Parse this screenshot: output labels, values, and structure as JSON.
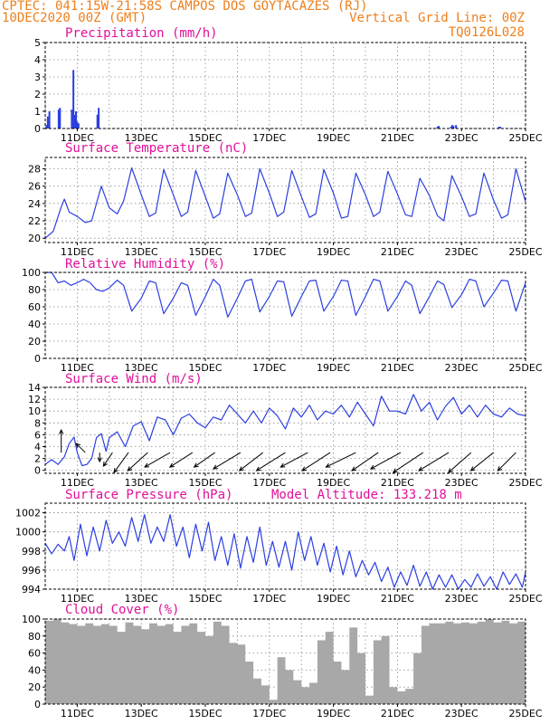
{
  "header": {
    "line1_left": "CPTEC:   041:15W-21:58S  CAMPOS DOS GOYTACAZES (RJ)",
    "line2_left": "10DEC2020 00Z (GMT)",
    "line2_right": "Vertical Grid Line: 00Z",
    "line3_right": "TQ0126L028"
  },
  "colors": {
    "header": "#ee7f1c",
    "panel_title": "#e0109a",
    "series": "#2b3fe0",
    "cloud": "#a8a8a8",
    "wind_arrow": "#000000",
    "grid": "#8a8a8a"
  },
  "x_axis": {
    "tick_labels": [
      "11DEC",
      "13DEC",
      "15DEC",
      "17DEC",
      "19DEC",
      "21DEC",
      "23DEC",
      "25DEC"
    ],
    "tick_days": [
      11,
      13,
      15,
      17,
      19,
      21,
      23,
      25
    ],
    "start_day": 10.0,
    "end_day": 25.0
  },
  "chart_data": [
    {
      "id": "precip",
      "type": "bar",
      "title": "Precipitation (mm/h)",
      "ylim": [
        0,
        5
      ],
      "yticks": [
        0,
        1,
        2,
        3,
        4,
        5
      ],
      "grid": true,
      "x": [
        10.04,
        10.08,
        10.13,
        10.42,
        10.46,
        10.83,
        10.88,
        10.92,
        10.96,
        11.0,
        11.04,
        11.63,
        11.67,
        22.25,
        22.29,
        22.67,
        22.71,
        22.75,
        22.83,
        24.17,
        24.21
      ],
      "values": [
        0.2,
        0.7,
        1.0,
        1.1,
        1.2,
        1.1,
        3.4,
        0.8,
        1.0,
        0.4,
        0.3,
        0.8,
        1.2,
        0.1,
        0.15,
        0.1,
        0.2,
        0.15,
        0.2,
        0.1,
        0.1
      ]
    },
    {
      "id": "temp",
      "type": "line",
      "title": "Surface Temperature (nC)",
      "ylim": [
        19.5,
        29.3
      ],
      "yticks": [
        20,
        22,
        24,
        26,
        28
      ],
      "grid": true,
      "x": [
        10.0,
        10.25,
        10.5,
        10.6,
        10.75,
        11.0,
        11.25,
        11.45,
        11.75,
        12.0,
        12.25,
        12.45,
        12.7,
        13.0,
        13.25,
        13.45,
        13.7,
        14.0,
        14.25,
        14.45,
        14.7,
        15.0,
        15.25,
        15.45,
        15.7,
        16.0,
        16.25,
        16.45,
        16.7,
        17.0,
        17.25,
        17.45,
        17.7,
        18.0,
        18.25,
        18.45,
        18.7,
        19.0,
        19.25,
        19.45,
        19.7,
        20.0,
        20.25,
        20.45,
        20.7,
        21.0,
        21.25,
        21.45,
        21.7,
        22.0,
        22.25,
        22.45,
        22.7,
        23.0,
        23.25,
        23.45,
        23.7,
        24.0,
        24.25,
        24.45,
        24.7,
        25.0
      ],
      "values": [
        20.0,
        20.8,
        23.6,
        24.5,
        23.0,
        22.5,
        21.8,
        22.0,
        26.0,
        23.5,
        22.8,
        24.3,
        28.1,
        25.0,
        22.5,
        22.9,
        27.9,
        25.0,
        22.5,
        23.0,
        27.8,
        24.8,
        22.3,
        22.8,
        27.5,
        25.0,
        22.5,
        22.9,
        28.0,
        25.2,
        22.5,
        23.0,
        27.8,
        24.8,
        22.4,
        22.8,
        27.9,
        25.2,
        22.3,
        22.5,
        27.5,
        25.0,
        22.5,
        23.0,
        27.7,
        25.1,
        22.7,
        22.5,
        26.9,
        24.9,
        22.6,
        22.0,
        27.2,
        24.8,
        22.5,
        22.8,
        27.5,
        24.4,
        22.3,
        22.7,
        28.0,
        24.2
      ]
    },
    {
      "id": "rh",
      "type": "line",
      "title": "Relative Humidity (%)",
      "ylim": [
        0,
        100
      ],
      "yticks": [
        0,
        20,
        40,
        60,
        80,
        100
      ],
      "grid": true,
      "x": [
        10.0,
        10.2,
        10.4,
        10.6,
        10.8,
        11.0,
        11.2,
        11.4,
        11.6,
        11.8,
        12.0,
        12.25,
        12.45,
        12.7,
        13.0,
        13.25,
        13.45,
        13.7,
        14.0,
        14.25,
        14.45,
        14.7,
        15.0,
        15.25,
        15.45,
        15.7,
        16.0,
        16.25,
        16.45,
        16.7,
        17.0,
        17.25,
        17.45,
        17.7,
        18.0,
        18.25,
        18.45,
        18.7,
        19.0,
        19.25,
        19.45,
        19.7,
        20.0,
        20.25,
        20.45,
        20.7,
        21.0,
        21.25,
        21.45,
        21.7,
        22.0,
        22.25,
        22.45,
        22.7,
        23.0,
        23.25,
        23.45,
        23.7,
        24.0,
        24.25,
        24.45,
        24.7,
        25.0
      ],
      "values": [
        100,
        100,
        88,
        90,
        85,
        88,
        92,
        88,
        80,
        78,
        82,
        91,
        85,
        55,
        70,
        90,
        88,
        52,
        70,
        88,
        85,
        50,
        72,
        92,
        85,
        48,
        70,
        90,
        92,
        54,
        72,
        90,
        89,
        49,
        72,
        90,
        91,
        55,
        72,
        91,
        90,
        50,
        72,
        92,
        90,
        55,
        72,
        90,
        85,
        52,
        72,
        90,
        86,
        59,
        74,
        92,
        90,
        60,
        76,
        91,
        90,
        55,
        88
      ]
    },
    {
      "id": "wind",
      "type": "line",
      "title": "Surface Wind (m/s)",
      "ylim": [
        -0.5,
        14
      ],
      "yticks": [
        0,
        2,
        4,
        6,
        8,
        10,
        12,
        14
      ],
      "grid": true,
      "x": [
        10.0,
        10.2,
        10.4,
        10.6,
        10.75,
        10.9,
        11.0,
        11.15,
        11.3,
        11.45,
        11.6,
        11.75,
        11.9,
        12.0,
        12.25,
        12.5,
        12.75,
        13.0,
        13.25,
        13.5,
        13.75,
        14.0,
        14.25,
        14.5,
        14.75,
        15.0,
        15.25,
        15.5,
        15.75,
        16.0,
        16.25,
        16.5,
        16.75,
        17.0,
        17.25,
        17.5,
        17.75,
        18.0,
        18.25,
        18.5,
        18.75,
        19.0,
        19.25,
        19.5,
        19.75,
        20.0,
        20.25,
        20.5,
        20.75,
        21.0,
        21.25,
        21.5,
        21.75,
        22.0,
        22.25,
        22.5,
        22.75,
        23.0,
        23.25,
        23.5,
        23.75,
        24.0,
        24.25,
        24.5,
        24.75,
        25.0
      ],
      "values": [
        1.0,
        1.8,
        1.0,
        2.3,
        4.5,
        5.6,
        3.0,
        0.8,
        1.0,
        2.0,
        5.5,
        6.2,
        3.2,
        5.5,
        6.5,
        4.0,
        7.5,
        8.2,
        5.0,
        9.0,
        8.5,
        6.0,
        8.8,
        9.5,
        8.0,
        7.2,
        9.0,
        8.5,
        11.0,
        9.5,
        8.0,
        10.0,
        8.0,
        10.5,
        9.2,
        7.0,
        10.5,
        9.0,
        11.0,
        8.5,
        10.0,
        9.5,
        11.0,
        9.0,
        11.5,
        9.5,
        7.5,
        12.5,
        10.0,
        10.0,
        9.5,
        12.8,
        10.0,
        11.5,
        8.5,
        10.8,
        12.3,
        9.5,
        11.0,
        9.0,
        11.0,
        9.5,
        9.0,
        10.5,
        9.5,
        9.2
      ]
    },
    {
      "id": "pressure",
      "type": "line",
      "title": "Surface Pressure (hPa)",
      "ylim": [
        994,
        1003
      ],
      "yticks": [
        994,
        996,
        998,
        1000,
        1002
      ],
      "grid": true,
      "annotation": "Model Altitude: 133.218 m",
      "x": [
        10.0,
        10.2,
        10.4,
        10.6,
        10.75,
        10.9,
        11.1,
        11.3,
        11.5,
        11.7,
        11.9,
        12.1,
        12.3,
        12.5,
        12.7,
        12.9,
        13.1,
        13.3,
        13.5,
        13.7,
        13.9,
        14.1,
        14.3,
        14.5,
        14.7,
        14.9,
        15.1,
        15.3,
        15.5,
        15.7,
        15.9,
        16.1,
        16.3,
        16.5,
        16.7,
        16.9,
        17.1,
        17.3,
        17.5,
        17.7,
        17.9,
        18.1,
        18.3,
        18.5,
        18.7,
        18.9,
        19.1,
        19.3,
        19.5,
        19.7,
        19.9,
        20.1,
        20.3,
        20.5,
        20.7,
        20.9,
        21.1,
        21.3,
        21.5,
        21.7,
        21.9,
        22.1,
        22.3,
        22.5,
        22.7,
        22.9,
        23.1,
        23.3,
        23.5,
        23.7,
        23.9,
        24.1,
        24.3,
        24.5,
        24.7,
        24.9,
        25.0
      ],
      "values": [
        998.8,
        997.7,
        998.7,
        998.0,
        999.5,
        997.0,
        1000.8,
        997.5,
        1000.5,
        998.0,
        1001.2,
        998.8,
        1000.0,
        998.5,
        1001.5,
        999.0,
        1001.8,
        998.8,
        1000.5,
        999.0,
        1001.8,
        998.5,
        1000.5,
        997.3,
        1000.8,
        998.0,
        1001.0,
        997.0,
        999.5,
        996.5,
        999.8,
        996.2,
        999.5,
        996.8,
        1000.5,
        996.5,
        999.0,
        996.3,
        999.0,
        996.0,
        1000.0,
        997.0,
        999.5,
        996.5,
        998.8,
        995.8,
        998.5,
        995.5,
        998.0,
        995.3,
        997.0,
        995.5,
        996.8,
        994.8,
        996.3,
        994.2,
        995.8,
        994.4,
        996.5,
        994.3,
        995.8,
        994.0,
        995.5,
        994.2,
        995.5,
        994.0,
        995.0,
        994.2,
        995.6,
        994.3,
        995.3,
        994.0,
        995.8,
        994.5,
        995.6,
        994.2,
        995.8
      ]
    },
    {
      "id": "cloud",
      "type": "bar",
      "title": "Cloud Cover (%)",
      "ylim": [
        0,
        100
      ],
      "yticks": [
        0,
        20,
        40,
        60,
        80,
        100
      ],
      "grid": true,
      "x": [
        10.0,
        10.25,
        10.5,
        10.75,
        11.0,
        11.25,
        11.5,
        11.75,
        12.0,
        12.25,
        12.5,
        12.75,
        13.0,
        13.25,
        13.5,
        13.75,
        14.0,
        14.25,
        14.5,
        14.75,
        15.0,
        15.25,
        15.5,
        15.75,
        16.0,
        16.25,
        16.5,
        16.75,
        17.0,
        17.25,
        17.5,
        17.75,
        18.0,
        18.25,
        18.5,
        18.75,
        19.0,
        19.25,
        19.5,
        19.75,
        20.0,
        20.25,
        20.5,
        20.75,
        21.0,
        21.25,
        21.5,
        21.75,
        22.0,
        22.25,
        22.5,
        22.75,
        23.0,
        23.25,
        23.5,
        23.75,
        24.0,
        24.25,
        24.5,
        24.75,
        25.0
      ],
      "values": [
        98,
        100,
        96,
        94,
        92,
        95,
        92,
        94,
        92,
        85,
        96,
        92,
        88,
        95,
        92,
        94,
        85,
        92,
        95,
        85,
        80,
        97,
        92,
        72,
        70,
        50,
        30,
        22,
        5,
        55,
        40,
        28,
        20,
        25,
        75,
        85,
        50,
        40,
        90,
        60,
        10,
        75,
        80,
        20,
        15,
        18,
        60,
        92,
        95,
        95,
        97,
        95,
        96,
        95,
        97,
        100,
        96,
        98,
        95,
        97,
        100
      ]
    }
  ],
  "wind_arrows": {
    "x": [
      10.5,
      11.25,
      11.7,
      12.1,
      12.6,
      13.2,
      13.9,
      14.6,
      15.3,
      16.1,
      16.8,
      17.5,
      18.2,
      18.9,
      19.7,
      20.4,
      21.1,
      21.8,
      22.6,
      23.3,
      24.0,
      24.7
    ],
    "u": [
      0.0,
      -1.0,
      0.0,
      -1.0,
      -1.6,
      -2.2,
      -2.8,
      -2.5,
      -2.3,
      -3.0,
      -2.6,
      -3.2,
      -3.0,
      -3.1,
      -3.3,
      -2.9,
      -3.3,
      -3.3,
      -3.3,
      -2.5,
      -2.5,
      -2.0
    ],
    "v": [
      2.5,
      1.0,
      -1.0,
      -1.5,
      -2.2,
      -2.0,
      -1.6,
      -1.6,
      -1.6,
      -1.8,
      -2.0,
      -2.0,
      -1.6,
      -2.0,
      -1.6,
      -2.0,
      -1.8,
      -2.2,
      -2.0,
      -2.2,
      -2.0,
      -2.0
    ]
  }
}
